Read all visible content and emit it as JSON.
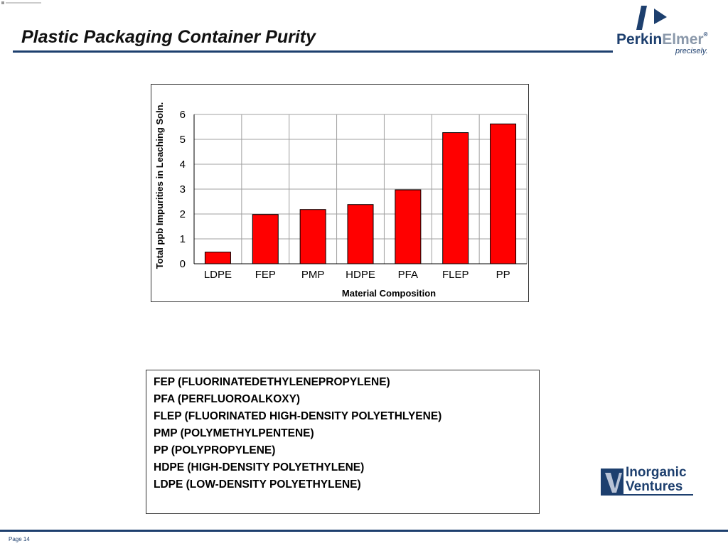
{
  "slide": {
    "title": "Plastic Packaging Container Purity",
    "page_label": "Page 14"
  },
  "logo_perkinelmer": {
    "name_part1": "Perkin",
    "name_part2": "Elmer",
    "registered": "®",
    "tagline": "precisely.",
    "color_primary": "#1d3f6e",
    "color_secondary": "#8a98aa"
  },
  "logo_inorganic_ventures": {
    "line1": "Inorganic",
    "line2": "Ventures",
    "color": "#1d3f6e"
  },
  "chart_data": {
    "type": "bar",
    "categories": [
      "LDPE",
      "FEP",
      "PMP",
      "HDPE",
      "PFA",
      "FLEP",
      "PP"
    ],
    "values": [
      0.47,
      1.98,
      2.18,
      2.38,
      2.97,
      5.27,
      5.62
    ],
    "xlabel": "Material Composition",
    "ylabel": "Total ppb Impurities in Leaching Soln.",
    "ylim": [
      0,
      6
    ],
    "yticks": [
      0,
      1,
      2,
      3,
      4,
      5,
      6
    ],
    "grid": true,
    "bar_color": "#ff0000"
  },
  "legend": {
    "lines": [
      "FEP  (FLUORINATEDETHYLENEPROPYLENE)",
      "PFA  (PERFLUOROALKOXY)",
      "FLEP  (FLUORINATED HIGH-DENSITY POLYETHLYENE)",
      "PMP  (POLYMETHYLPENTENE)",
      "PP  (POLYPROPYLENE)",
      "HDPE  (HIGH-DENSITY POLYETHYLENE)",
      "LDPE  (LOW-DENSITY POLYETHYLENE)"
    ]
  }
}
